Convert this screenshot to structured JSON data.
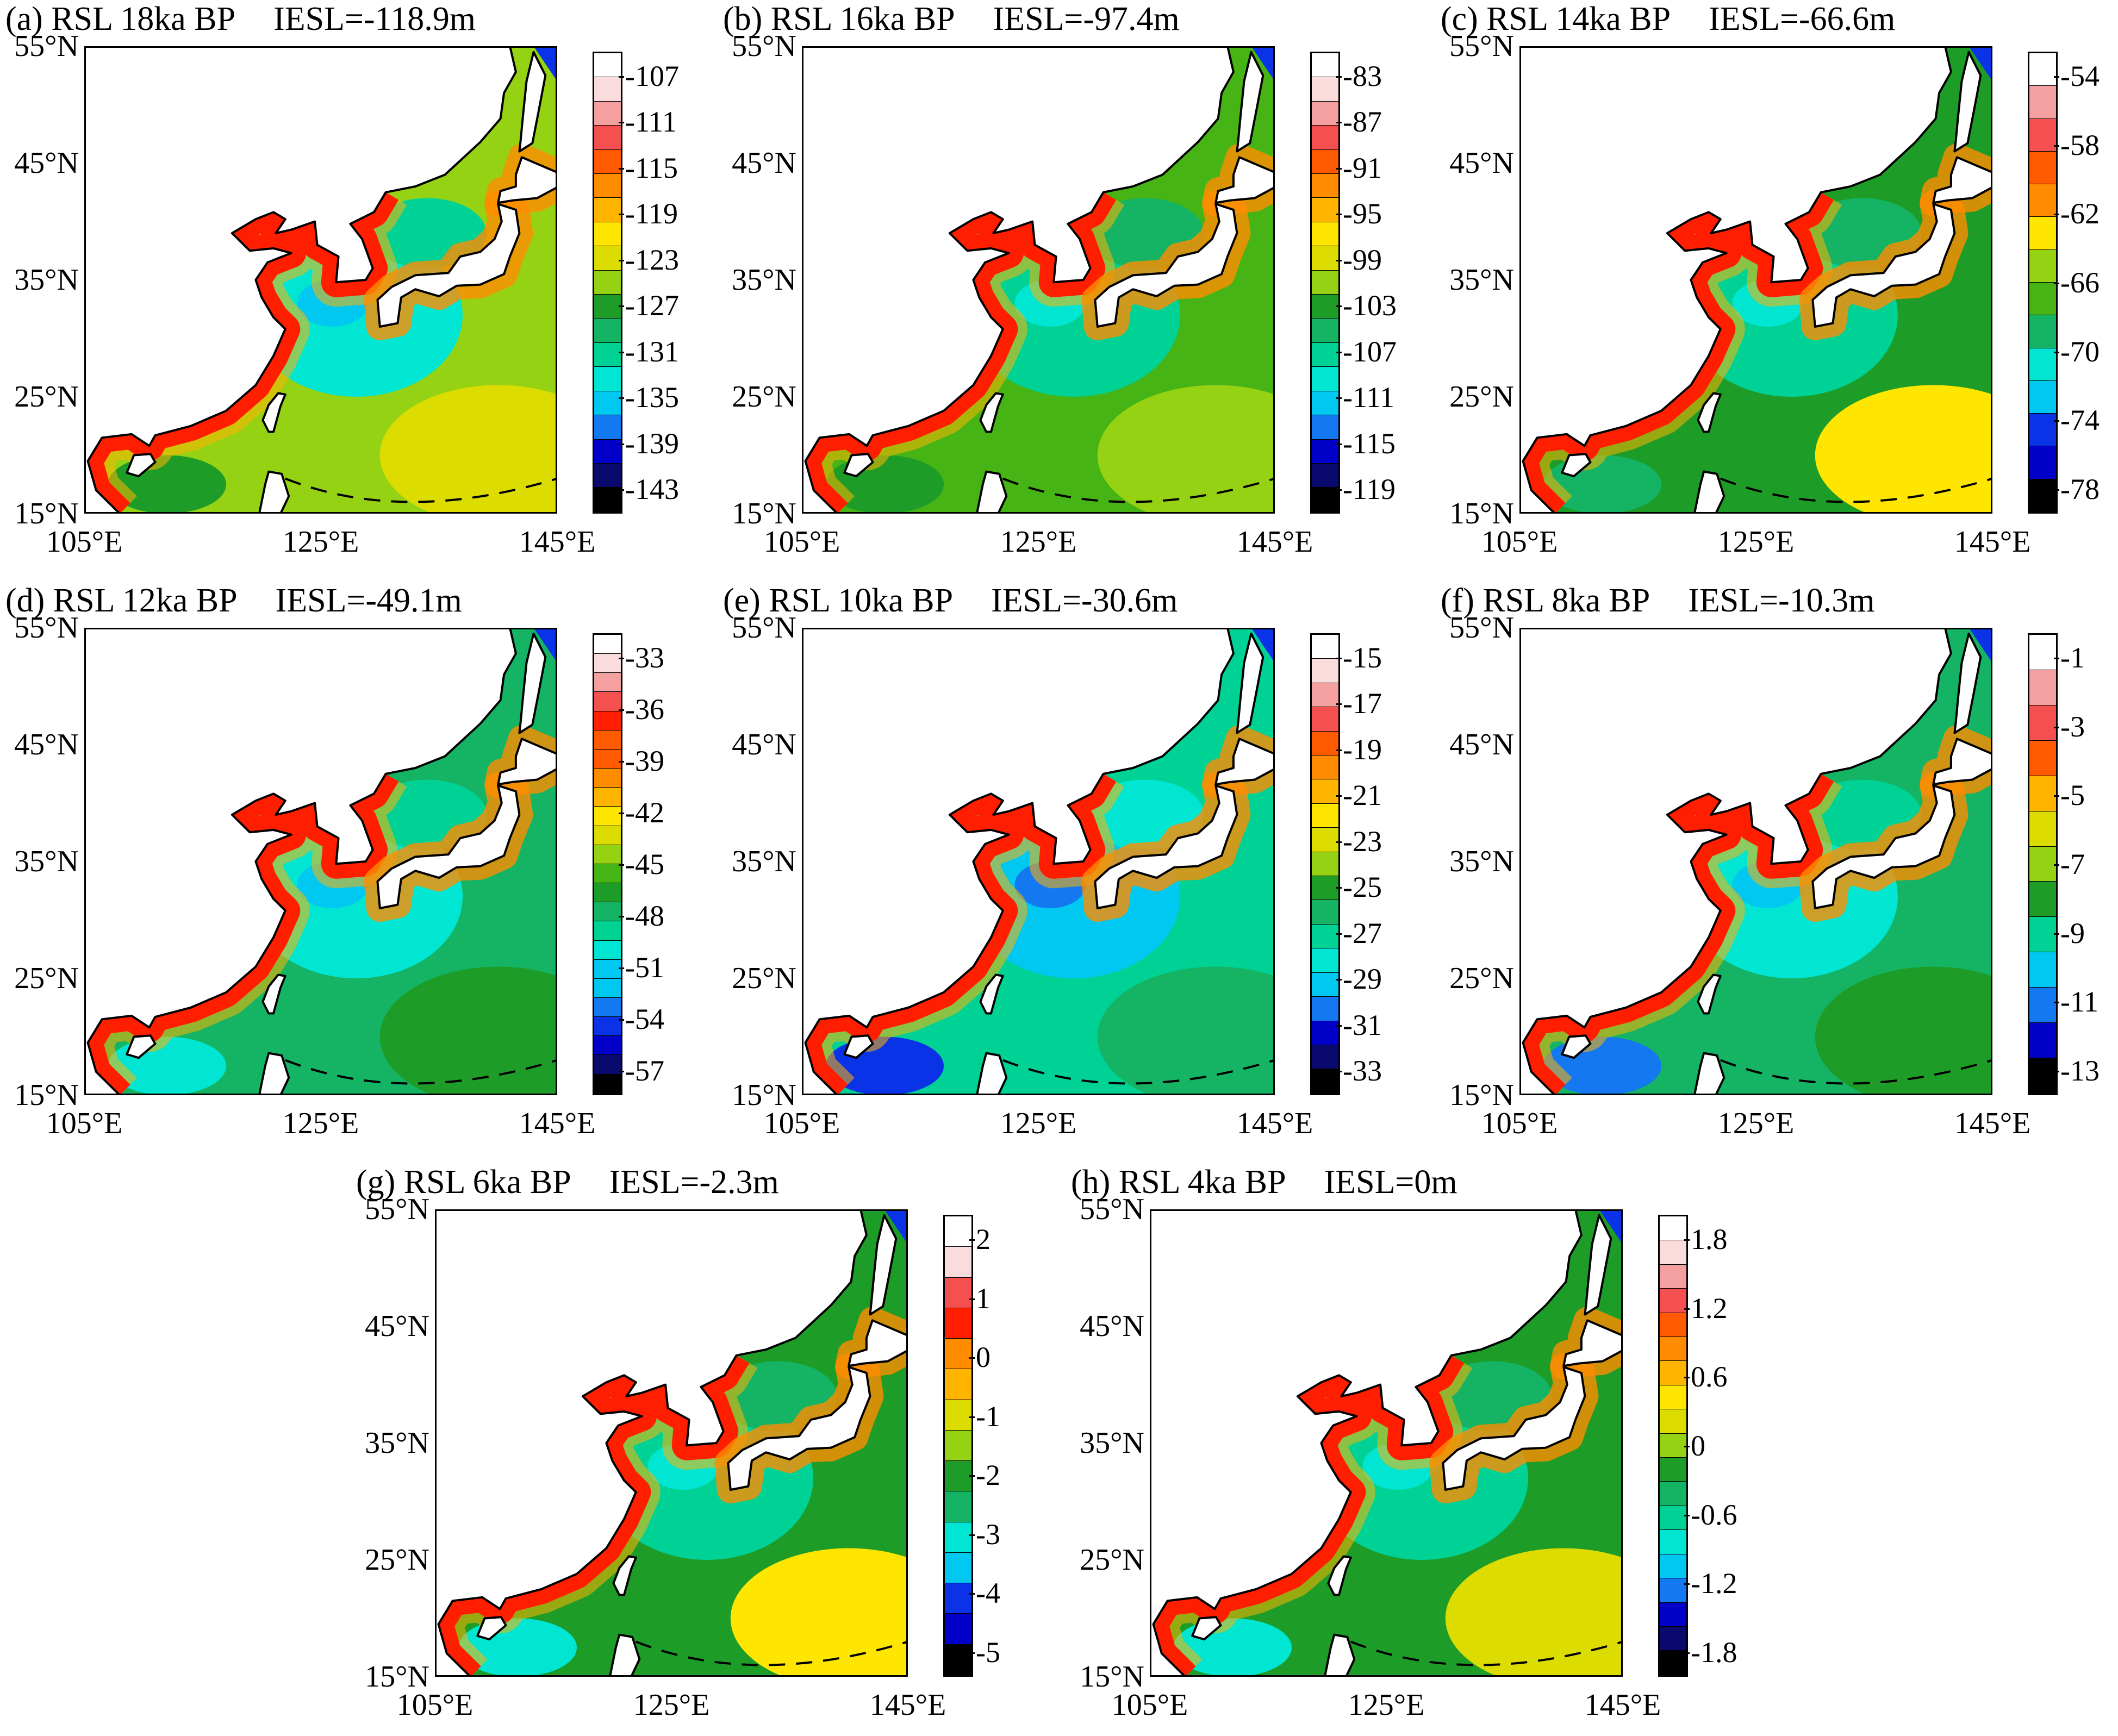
{
  "axis": {
    "lat_labels": [
      "55°N",
      "45°N",
      "35°N",
      "25°N",
      "15°N"
    ],
    "lon_labels": [
      "105°E",
      "125°E",
      "145°E"
    ]
  },
  "colors": {
    "scale": [
      "#000000",
      "#0a0a6e",
      "#0000c8",
      "#0a32e6",
      "#1478f0",
      "#00c8f0",
      "#00e6d2",
      "#00d296",
      "#14b464",
      "#1e9c28",
      "#46b414",
      "#96d214",
      "#dcdc00",
      "#ffe600",
      "#ffb400",
      "#ff8c00",
      "#ff5a00",
      "#ff1e00",
      "#f55050",
      "#f5a0a0",
      "#fadcdc",
      "#ffffff"
    ],
    "land": "#ffffff",
    "coast": "#000000"
  },
  "panels": [
    {
      "title": "(a) RSL 18ka BP",
      "iesl": "IESL=-118.9m",
      "ticks": [
        "-107",
        "-111",
        "-115",
        "-119",
        "-123",
        "-127",
        "-131",
        "-135",
        "-139",
        "-143"
      ],
      "segments": 19
    },
    {
      "title": "(b) RSL 16ka BP",
      "iesl": "IESL=-97.4m",
      "ticks": [
        "-83",
        "-87",
        "-91",
        "-95",
        "-99",
        "-103",
        "-107",
        "-111",
        "-115",
        "-119"
      ],
      "segments": 19
    },
    {
      "title": "(c) RSL 14ka BP",
      "iesl": "IESL=-66.6m",
      "ticks": [
        "-54",
        "-58",
        "-62",
        "-66",
        "-70",
        "-74",
        "-78"
      ],
      "segments": 14
    },
    {
      "title": "(d) RSL 12ka BP",
      "iesl": "IESL=-49.1m",
      "ticks": [
        "-33",
        "-36",
        "-39",
        "-42",
        "-45",
        "-48",
        "-51",
        "-54",
        "-57"
      ],
      "segments": 24
    },
    {
      "title": "(e) RSL 10ka BP",
      "iesl": "IESL=-30.6m",
      "ticks": [
        "-15",
        "-17",
        "-19",
        "-21",
        "-23",
        "-25",
        "-27",
        "-29",
        "-31",
        "-33"
      ],
      "segments": 19
    },
    {
      "title": "(f) RSL 8ka BP",
      "iesl": "IESL=-10.3m",
      "ticks": [
        "-1",
        "-3",
        "-5",
        "-7",
        "-9",
        "-11",
        "-13"
      ],
      "segments": 13
    },
    {
      "title": "(g) RSL 6ka BP",
      "iesl": "IESL=-2.3m",
      "ticks": [
        "2",
        "1",
        "0",
        "-1",
        "-2",
        "-3",
        "-4",
        "-5"
      ],
      "segments": 15
    },
    {
      "title": "(h) RSL 4ka BP",
      "iesl": "IESL=0m",
      "ticks": [
        "1.8",
        "1.2",
        "0.6",
        "0",
        "-0.6",
        "-1.2",
        "-1.8"
      ],
      "segments": 19
    }
  ]
}
